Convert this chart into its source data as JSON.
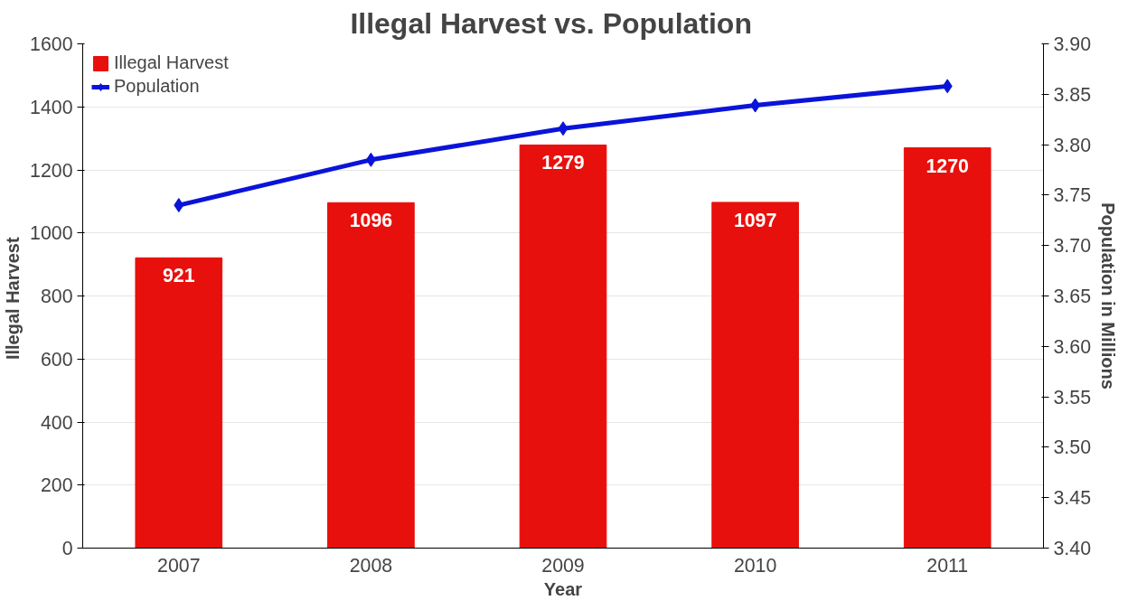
{
  "chart_data": {
    "type": "bar",
    "title": "Illegal  Harvest  vs.  Population",
    "xlabel": "Year",
    "ylabel": "Illegal  Harvest",
    "y2label": "Population in Millions",
    "categories": [
      "2007",
      "2008",
      "2009",
      "2010",
      "2011"
    ],
    "series": [
      {
        "name": "Illegal Harvest",
        "color": "#e8100c",
        "values": [
          921,
          1096,
          1279,
          1097,
          1270
        ],
        "data_labels": true
      },
      {
        "name": "Population",
        "type": "line",
        "color": "#0a14d8",
        "axis": "y2",
        "marker": "diamond",
        "values": [
          3.74,
          3.785,
          3.816,
          3.839,
          3.858
        ]
      }
    ],
    "ylim": [
      0,
      1600
    ],
    "yticks": [
      0,
      200,
      400,
      600,
      800,
      1000,
      1200,
      1400,
      1600
    ],
    "y2lim": [
      3.4,
      3.9
    ],
    "y2ticks": [
      {
        "value": 3.4,
        "label": "3.40"
      },
      {
        "value": 3.45,
        "label": "3.45"
      },
      {
        "value": 3.5,
        "label": "3.50"
      },
      {
        "value": 3.55,
        "label": "3.55"
      },
      {
        "value": 3.6,
        "label": "3.60"
      },
      {
        "value": 3.65,
        "label": "3.65"
      },
      {
        "value": 3.7,
        "label": "3.70"
      },
      {
        "value": 3.75,
        "label": "3.75"
      },
      {
        "value": 3.8,
        "label": "3.80"
      },
      {
        "value": 3.85,
        "label": "3.85"
      },
      {
        "value": 3.9,
        "label": "3.90"
      }
    ],
    "grid": "y",
    "legend": "top left"
  }
}
